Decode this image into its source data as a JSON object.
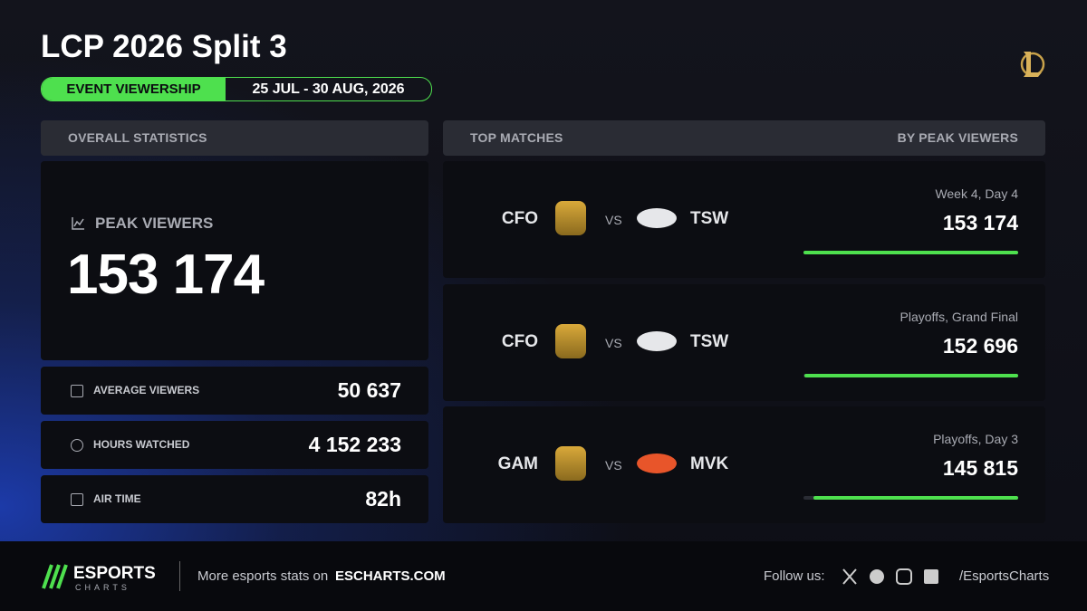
{
  "header": {
    "title": "LCP 2026 Split 3",
    "badge": "EVENT VIEWERSHIP",
    "dates": "25 JUL - 30 AUG, 2026"
  },
  "overall": {
    "heading": "OVERALL STATISTICS",
    "peak": {
      "label": "PEAK VIEWERS",
      "value": "153 174"
    },
    "stats": [
      {
        "label": "AVERAGE VIEWERS",
        "value": "50 637"
      },
      {
        "label": "HOURS WATCHED",
        "value": "4 152 233"
      },
      {
        "label": "AIR TIME",
        "value": "82h"
      }
    ]
  },
  "top_matches": {
    "heading": "TOP MATCHES",
    "sort": "BY PEAK VIEWERS",
    "vs": "VS",
    "matches": [
      {
        "team1": "CFO",
        "team2": "TSW",
        "stage": "Week 4, Day 4",
        "viewers": 153174,
        "viewers_label": "153 174"
      },
      {
        "team1": "CFO",
        "team2": "TSW",
        "stage": "Playoffs, Grand Final",
        "viewers": 152696,
        "viewers_label": "152 696"
      },
      {
        "team1": "GAM",
        "team2": "MVK",
        "stage": "Playoffs, Day 3",
        "viewers": 145815,
        "viewers_label": "145 815"
      }
    ]
  },
  "footer": {
    "brand": "ESPORTS",
    "brand_sub": "CHARTS",
    "promo": "More esports stats on",
    "site": "ESCHARTS.COM",
    "follow": "Follow us:",
    "handle": "/EsportsCharts"
  }
}
